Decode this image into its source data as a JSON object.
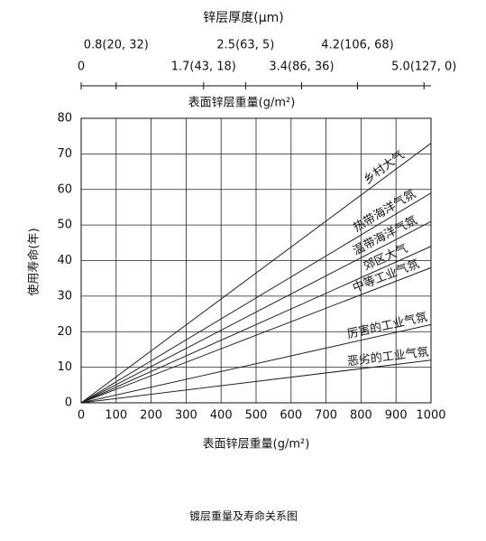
{
  "chart_data": {
    "type": "line",
    "title": "镀层重量及寿命关系图",
    "x_label": "表面锌层重量(g/m²)",
    "y_label": "使用寿命(年)",
    "x2_title": "锌层厚度(μm)",
    "x2_label": "表面锌层重量(g/m²)",
    "x": [
      0,
      1000
    ],
    "series": [
      {
        "name": "乡村大气",
        "color": "#222222",
        "values": [
          0,
          73
        ]
      },
      {
        "name": "热带海洋气氛",
        "color": "#222222",
        "values": [
          0,
          59
        ]
      },
      {
        "name": "温带海洋气氛",
        "color": "#222222",
        "values": [
          0,
          51
        ]
      },
      {
        "name": "郊区大气",
        "color": "#222222",
        "values": [
          0,
          44
        ]
      },
      {
        "name": "中等工业气氛",
        "color": "#222222",
        "values": [
          0,
          38
        ]
      },
      {
        "name": "厉害的工业气氛",
        "color": "#222222",
        "values": [
          0,
          22
        ]
      },
      {
        "name": "恶劣的工业气氛",
        "color": "#222222",
        "values": [
          0,
          12
        ]
      }
    ],
    "xlim": [
      0,
      1000
    ],
    "xticks": [
      0,
      100,
      200,
      300,
      400,
      500,
      600,
      700,
      800,
      900,
      1000
    ],
    "ylim": [
      0,
      80
    ],
    "yticks": [
      0,
      10,
      20,
      30,
      40,
      50,
      60,
      70,
      80
    ],
    "x2lim": [
      0,
      1000
    ],
    "x2ticks": [
      {
        "value": 0,
        "label": "0"
      },
      {
        "value": 100,
        "label": "0.8(20, 32)"
      },
      {
        "value": 350,
        "label": "1.7(43, 18)"
      },
      {
        "value": 470,
        "label": "2.5(63, 5)"
      },
      {
        "value": 630,
        "label": "3.4(86, 36)"
      },
      {
        "value": 790,
        "label": "4.2(106, 68)"
      },
      {
        "value": 980,
        "label": "5.0(127, 0)"
      }
    ],
    "grid": true
  }
}
